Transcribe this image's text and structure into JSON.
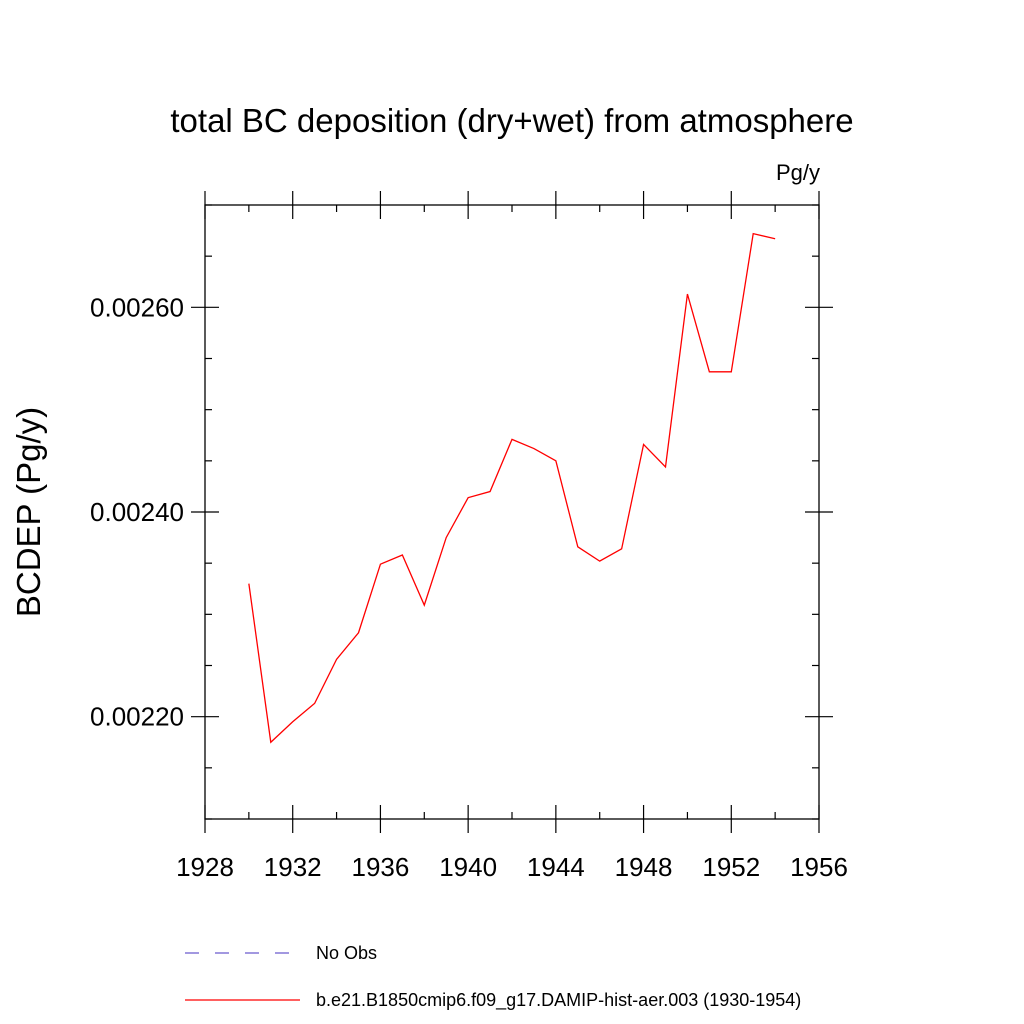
{
  "chart_data": {
    "type": "line",
    "title": "total BC deposition (dry+wet) from atmosphere",
    "units_label": "Pg/y",
    "ylabel": "BCDEP  (Pg/y)",
    "xlabel": "",
    "xlim": [
      1928,
      1956
    ],
    "ylim": [
      0.0021,
      0.0027
    ],
    "x_ticks": [
      1928,
      1932,
      1936,
      1940,
      1944,
      1948,
      1952,
      1956
    ],
    "x_tick_labels": [
      "1928",
      "1932",
      "1936",
      "1940",
      "1944",
      "1948",
      "1952",
      "1956"
    ],
    "x_minor_step": 2,
    "y_ticks": [
      0.0022,
      0.0024,
      0.0026
    ],
    "y_tick_labels": [
      "0.00220",
      "0.00240",
      "0.00260"
    ],
    "y_minor_step": 5e-05,
    "grid": false,
    "legend_position": "bottom",
    "series": [
      {
        "name": "No Obs",
        "color": "#6a5acd",
        "style": "dashed",
        "x": [],
        "y": []
      },
      {
        "name": "b.e21.B1850cmip6.f09_g17.DAMIP-hist-aer.003 (1930-1954)",
        "color": "#ff0000",
        "style": "solid",
        "x": [
          1930,
          1931,
          1932,
          1933,
          1934,
          1935,
          1936,
          1937,
          1938,
          1939,
          1940,
          1941,
          1942,
          1943,
          1944,
          1945,
          1946,
          1947,
          1948,
          1949,
          1950,
          1951,
          1952,
          1953,
          1954
        ],
        "y": [
          0.00233,
          0.002175,
          0.002195,
          0.002213,
          0.002256,
          0.002282,
          0.002349,
          0.002358,
          0.002309,
          0.002375,
          0.002414,
          0.00242,
          0.002471,
          0.002462,
          0.00245,
          0.002366,
          0.002352,
          0.002364,
          0.002466,
          0.002444,
          0.002613,
          0.002537,
          0.002537,
          0.002672,
          0.002667
        ]
      }
    ]
  }
}
